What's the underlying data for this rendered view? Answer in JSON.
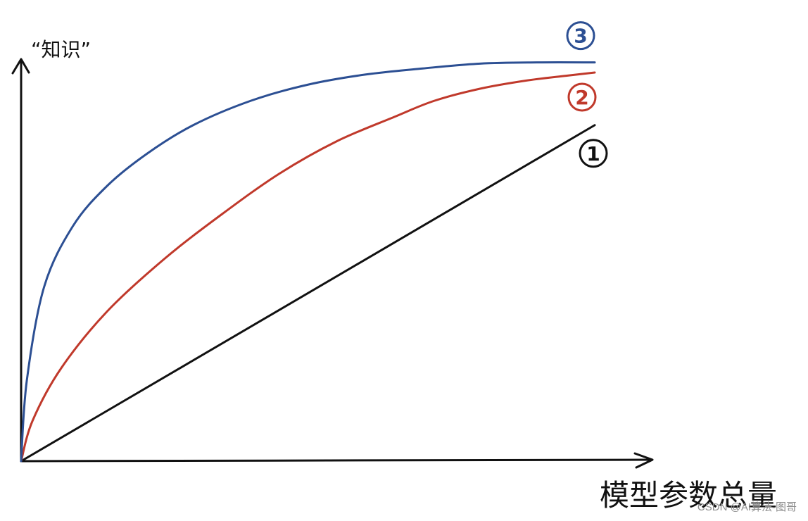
{
  "chart_data": {
    "type": "line",
    "ylabel": "“知识”",
    "xlabel": "模型参数总量",
    "xlim": [
      0,
      1
    ],
    "ylim": [
      0,
      1
    ],
    "grid": false,
    "legend": "none",
    "series": [
      {
        "name": "1",
        "color": "#111111",
        "x": [
          0,
          1
        ],
        "y": [
          0,
          0.83
        ]
      },
      {
        "name": "2",
        "color": "#c0392b",
        "x": [
          0,
          0.02,
          0.07,
          0.15,
          0.25,
          0.35,
          0.45,
          0.55,
          0.65,
          0.72,
          0.8,
          0.88,
          0.95,
          1.0
        ],
        "y": [
          0,
          0.1,
          0.23,
          0.37,
          0.5,
          0.61,
          0.71,
          0.79,
          0.85,
          0.89,
          0.92,
          0.94,
          0.952,
          0.96
        ]
      },
      {
        "name": "3",
        "color": "#2c4f93",
        "x": [
          0,
          0.01,
          0.04,
          0.09,
          0.15,
          0.22,
          0.3,
          0.4,
          0.5,
          0.6,
          0.7,
          0.8,
          0.9,
          1.0
        ],
        "y": [
          0,
          0.2,
          0.43,
          0.58,
          0.68,
          0.76,
          0.83,
          0.89,
          0.93,
          0.955,
          0.97,
          0.982,
          0.985,
          0.985
        ]
      }
    ]
  },
  "watermark": "CSDN @AI算法-图哥"
}
